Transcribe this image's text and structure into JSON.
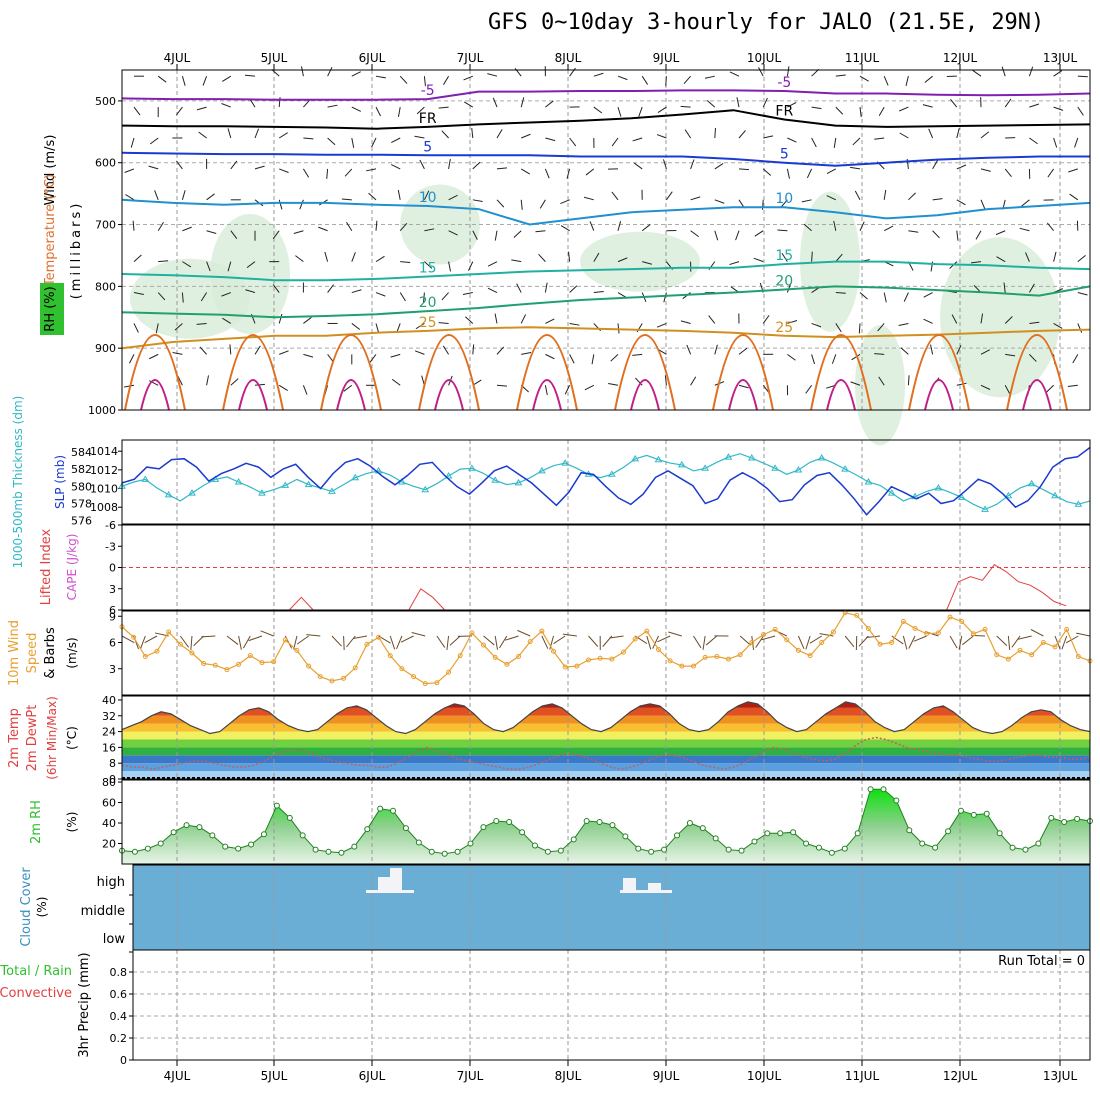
{
  "title": "GFS 0~10day 3-hourly for JALO (21.5E, 29N)",
  "x_axis": {
    "labels": [
      "4JUL",
      "5JUL",
      "6JUL",
      "7JUL",
      "8JUL",
      "9JUL",
      "10JUL",
      "11JUL",
      "12JUL",
      "13JUL"
    ]
  },
  "colors": {
    "temp": "#e07030",
    "rh": "#30c030",
    "slp": "#1a3ad0",
    "thk": "#30b8c8",
    "cape": "#d050d0",
    "li": "#e04040",
    "wind": "#e8a030",
    "cloud": "#6aaed6"
  },
  "chart_data": [
    {
      "panel": "upper-air",
      "type": "contour",
      "ylabel_parts": [
        "Wind (m/s)",
        "Temperature (°C)",
        "RH (%)"
      ],
      "ylabel2": "(millibars)",
      "y_ticks": [
        "500",
        "600",
        "700",
        "800",
        "900",
        "1000"
      ],
      "ylim": [
        1000,
        450
      ],
      "isotherms": [
        {
          "label": "-5",
          "color": "#8020b0",
          "p": [
            496,
            497,
            497,
            498,
            498,
            498,
            497,
            485,
            485,
            484,
            484,
            483,
            483,
            484,
            488,
            488,
            490,
            491,
            490,
            488
          ]
        },
        {
          "label": "FR",
          "color": "#000000",
          "p": [
            540,
            541,
            541,
            542,
            543,
            545,
            542,
            538,
            535,
            532,
            528,
            522,
            515,
            530,
            540,
            542,
            541,
            540,
            539,
            538
          ]
        },
        {
          "label": "5",
          "color": "#1a3ad0",
          "p": [
            584,
            585,
            586,
            586,
            587,
            587,
            588,
            588,
            588,
            590,
            590,
            590,
            594,
            600,
            605,
            600,
            595,
            592,
            590,
            590
          ]
        },
        {
          "label": "10",
          "color": "#2090d0",
          "p": [
            660,
            665,
            668,
            665,
            665,
            668,
            670,
            675,
            700,
            690,
            680,
            676,
            672,
            672,
            680,
            690,
            685,
            675,
            670,
            665
          ]
        },
        {
          "label": "15",
          "color": "#20b0a0",
          "p": [
            780,
            782,
            785,
            790,
            790,
            788,
            784,
            780,
            776,
            774,
            772,
            770,
            770,
            764,
            760,
            760,
            764,
            766,
            770,
            772
          ]
        },
        {
          "label": "20",
          "color": "#20a070",
          "p": [
            842,
            844,
            846,
            850,
            848,
            845,
            840,
            835,
            828,
            822,
            818,
            814,
            810,
            805,
            800,
            802,
            806,
            810,
            815,
            800
          ]
        },
        {
          "label": "25",
          "color": "#d09020",
          "p": [
            900,
            890,
            885,
            880,
            880,
            875,
            872,
            868,
            866,
            868,
            870,
            872,
            875,
            880,
            882,
            880,
            878,
            875,
            872,
            870
          ]
        }
      ]
    },
    {
      "panel": "thickness-slp",
      "type": "line",
      "ylabel_left": "1000-500mb Thickness (dm)",
      "ylabel_right": "SLP (mb)",
      "y_ticks_left": [
        "576",
        "578",
        "580",
        "582",
        "584"
      ],
      "y_ticks_right": [
        "1008",
        "1010",
        "1012",
        "1014"
      ],
      "series": [
        {
          "name": "SLP (mb)",
          "axis": "right",
          "values": [
            1010.6,
            1011.0,
            1012.3,
            1012.1,
            1013.1,
            1013.2,
            1012.3,
            1010.8,
            1011.6,
            1012.1,
            1012.7,
            1012.3,
            1011.2,
            1012.1,
            1012.6,
            1011.2,
            1010.0,
            1011.6,
            1012.8,
            1013.2,
            1012.4,
            1011.3,
            1010.4,
            1011.4,
            1012.6,
            1012.8,
            1011.4,
            1010.2,
            1009.4,
            1010.6,
            1011.9,
            1012.4,
            1011.5,
            1010.6,
            1009.4,
            1008.2,
            1009.6,
            1011.7,
            1011.5,
            1010.2,
            1009.0,
            1008.3,
            1009.4,
            1011.2,
            1011.9,
            1011.1,
            1010.3,
            1008.4,
            1008.9,
            1010.9,
            1011.7,
            1011.0,
            1010.0,
            1008.6,
            1008.8,
            1010.4,
            1011.4,
            1011.7,
            1010.4,
            1008.9,
            1007.2,
            1008.6,
            1010.2,
            1009.6,
            1008.9,
            1009.5,
            1008.4,
            1008.7,
            1009.8,
            1011.0,
            1010.5,
            1009.4,
            1008.0,
            1008.7,
            1010.2,
            1012.3,
            1013.2,
            1013.4,
            1014.4
          ]
        },
        {
          "name": "Thickness (dm)",
          "axis": "left",
          "values": [
            580.0,
            580.5,
            580.8,
            579.8,
            579.0,
            578.3,
            579.2,
            580.1,
            580.8,
            581.1,
            580.5,
            579.9,
            579.2,
            579.6,
            580.1,
            580.8,
            580.2,
            579.8,
            579.4,
            580.2,
            581.0,
            581.5,
            581.8,
            581.3,
            580.5,
            580.0,
            579.6,
            580.3,
            581.2,
            582.0,
            582.1,
            581.5,
            580.7,
            580.2,
            580.4,
            581.0,
            581.8,
            582.4,
            582.7,
            582.1,
            581.4,
            581.0,
            581.4,
            582.2,
            583.2,
            583.6,
            583.1,
            582.7,
            582.5,
            581.8,
            582.1,
            582.8,
            583.4,
            583.8,
            583.3,
            582.7,
            582.1,
            581.4,
            581.9,
            582.8,
            583.3,
            582.7,
            582.0,
            581.3,
            580.5,
            580.1,
            579.2,
            578.3,
            578.8,
            579.4,
            579.8,
            579.3,
            578.7,
            577.9,
            577.3,
            577.9,
            578.9,
            579.8,
            580.3,
            579.6,
            578.9,
            578.2,
            577.9,
            578.3
          ]
        }
      ]
    },
    {
      "panel": "li-cape",
      "type": "line",
      "ylabel_left": "Lifted Index",
      "ylabel_right": "CAPE (J/kg)",
      "y_ticks": [
        "-6",
        "-3",
        "0",
        "3",
        "6"
      ],
      "ylim": [
        6,
        -6
      ],
      "series": [
        {
          "name": "Lifted Index",
          "values": [
            null,
            null,
            null,
            null,
            null,
            null,
            null,
            null,
            null,
            null,
            null,
            null,
            null,
            null,
            6,
            4.2,
            6,
            null,
            null,
            null,
            null,
            null,
            null,
            null,
            6,
            3.0,
            4.2,
            6,
            null,
            null,
            null,
            null,
            null,
            null,
            null,
            null,
            null,
            null,
            null,
            null,
            null,
            null,
            null,
            null,
            null,
            null,
            null,
            null,
            null,
            null,
            null,
            null,
            null,
            null,
            null,
            null,
            null,
            null,
            null,
            null,
            null,
            null,
            null,
            null,
            null,
            null,
            null,
            null,
            null,
            6,
            2.0,
            1.3,
            1.8,
            -0.4,
            0.6,
            2.0,
            2.5,
            3.5,
            4.8,
            5.4,
            null,
            6
          ]
        }
      ]
    },
    {
      "panel": "wind-10m",
      "type": "line",
      "ylabel_left": "10m Wind",
      "ylabel_mid": "Speed",
      "ylabel_right": "& Barbs",
      "ylabel_units": "(m/s)",
      "y_ticks": [
        "3",
        "6",
        "9"
      ],
      "ylim": [
        0,
        9.6
      ],
      "series": [
        {
          "name": "10m Wind Speed",
          "values": [
            7.8,
            6.6,
            4.4,
            5.0,
            7.2,
            5.8,
            4.8,
            3.6,
            3.4,
            2.9,
            3.5,
            4.5,
            3.7,
            3.8,
            6.3,
            5.1,
            3.3,
            2.1,
            1.6,
            1.9,
            3.1,
            5.8,
            6.6,
            4.5,
            3.0,
            2.1,
            1.3,
            1.4,
            2.6,
            4.5,
            7.1,
            5.7,
            4.3,
            3.5,
            4.4,
            6.1,
            7.3,
            5.0,
            3.2,
            3.3,
            4.0,
            4.2,
            4.1,
            4.9,
            6.4,
            7.3,
            5.2,
            3.9,
            3.3,
            3.3,
            4.3,
            4.4,
            4.1,
            4.6,
            6.0,
            6.9,
            7.5,
            6.3,
            5.1,
            4.5,
            6.0,
            7.2,
            9.4,
            9.1,
            7.6,
            5.8,
            6.0,
            8.4,
            7.6,
            7.0,
            7.1,
            8.9,
            8.4,
            7.0,
            7.5,
            4.6,
            4.1,
            5.1,
            4.6,
            6.0,
            5.5,
            7.5,
            4.4,
            3.9
          ]
        }
      ]
    },
    {
      "panel": "temp-2m",
      "type": "line",
      "ylabel": "2m Temp",
      "ylabel2": "2m DewPt",
      "ylabel3": "(6hr Min/Max)",
      "ylabel_units": "(°C)",
      "y_ticks": [
        "0",
        "8",
        "16",
        "24",
        "32",
        "40"
      ],
      "ylim": [
        0,
        42
      ],
      "series": [
        {
          "name": "2m Temp",
          "values": [
            25,
            27,
            29,
            32,
            34,
            33,
            30,
            27,
            25,
            23,
            24,
            28,
            32,
            35,
            36,
            34,
            30,
            27,
            25,
            24,
            25,
            29,
            33,
            36,
            37,
            35,
            31,
            27,
            24,
            23,
            25,
            29,
            33,
            36,
            38,
            37,
            33,
            28,
            25,
            24,
            26,
            30,
            34,
            37,
            38,
            36,
            32,
            28,
            25,
            24,
            26,
            30,
            34,
            37,
            38,
            37,
            33,
            28,
            25,
            24,
            25,
            29,
            34,
            37,
            39,
            38,
            34,
            29,
            26,
            24,
            25,
            29,
            33,
            36,
            39,
            38,
            34,
            29,
            26,
            24,
            25,
            29,
            33,
            36,
            37,
            34,
            30,
            26,
            24,
            23,
            24,
            27,
            31,
            34,
            35,
            34,
            30,
            27,
            25,
            24
          ]
        },
        {
          "name": "2m DewPt",
          "values": [
            7,
            6,
            6,
            5,
            6,
            7,
            8,
            9,
            9,
            8,
            7,
            6,
            6,
            7,
            9,
            12,
            14,
            15,
            14,
            12,
            10,
            9,
            8,
            7,
            7,
            6,
            6,
            8,
            11,
            14,
            16,
            14,
            12,
            10,
            9,
            8,
            7,
            6,
            5,
            5,
            6,
            8,
            10,
            12,
            13,
            12,
            10,
            8,
            6,
            5,
            6,
            8,
            10,
            12,
            12,
            11,
            9,
            7,
            6,
            5,
            6,
            8,
            11,
            14,
            16,
            15,
            13,
            11,
            10,
            9,
            10,
            13,
            17,
            20,
            21,
            20,
            18,
            16,
            15,
            14,
            13,
            12,
            12,
            11,
            10,
            9,
            9,
            10,
            11,
            12,
            12,
            11,
            11,
            10,
            10,
            11
          ]
        }
      ]
    },
    {
      "panel": "rh-2m",
      "type": "area",
      "ylabel": "2m RH",
      "ylabel_units": "(%)",
      "y_ticks": [
        "20",
        "40",
        "60",
        "80"
      ],
      "ylim": [
        0,
        80
      ],
      "series": [
        {
          "name": "2m RH",
          "values": [
            13,
            12,
            15,
            20,
            31,
            38,
            36,
            28,
            17,
            15,
            19,
            29,
            57,
            45,
            28,
            14,
            12,
            11,
            17,
            34,
            54,
            52,
            35,
            21,
            12,
            10,
            12,
            20,
            36,
            42,
            41,
            31,
            18,
            12,
            13,
            24,
            42,
            41,
            38,
            27,
            15,
            12,
            14,
            28,
            40,
            35,
            25,
            14,
            13,
            22,
            30,
            30,
            31,
            20,
            16,
            11,
            15,
            30,
            73,
            73,
            62,
            33,
            20,
            16,
            32,
            52,
            48,
            49,
            30,
            16,
            14,
            20,
            45,
            41,
            44,
            42
          ]
        }
      ]
    },
    {
      "panel": "cloud-cover",
      "type": "bar",
      "ylabel": "Cloud Cover",
      "ylabel_units": "(%)",
      "levels": [
        "high",
        "middle",
        "low"
      ],
      "series": [
        {
          "name": "high",
          "values": [
            0,
            0,
            0,
            0,
            0,
            0,
            0,
            0,
            0,
            0,
            0,
            0,
            0,
            0,
            0,
            0,
            0,
            0,
            0,
            0,
            0,
            0,
            0,
            0,
            0,
            0,
            0,
            0,
            0,
            0,
            0,
            0,
            0,
            0,
            0,
            0,
            0,
            0,
            0,
            0,
            0,
            0,
            0,
            0,
            0,
            0,
            0,
            0,
            0,
            0,
            0,
            0,
            0,
            0,
            0,
            0,
            0,
            0,
            0,
            0,
            0,
            0,
            0,
            0,
            0,
            0,
            0,
            0,
            0,
            0,
            0,
            0,
            0,
            0,
            0,
            0,
            0,
            0,
            0,
            0,
            0
          ]
        }
      ]
    },
    {
      "panel": "precip-3hr",
      "type": "bar",
      "ylabel": "3hr Precip (mm)",
      "legend_left": "Total / Rain",
      "legend_left2": "Convective",
      "y_ticks": [
        "0",
        "0.2",
        "0.4",
        "0.6",
        "0.8"
      ],
      "ylim": [
        0,
        1
      ],
      "annotation": "Run Total = 0"
    }
  ]
}
